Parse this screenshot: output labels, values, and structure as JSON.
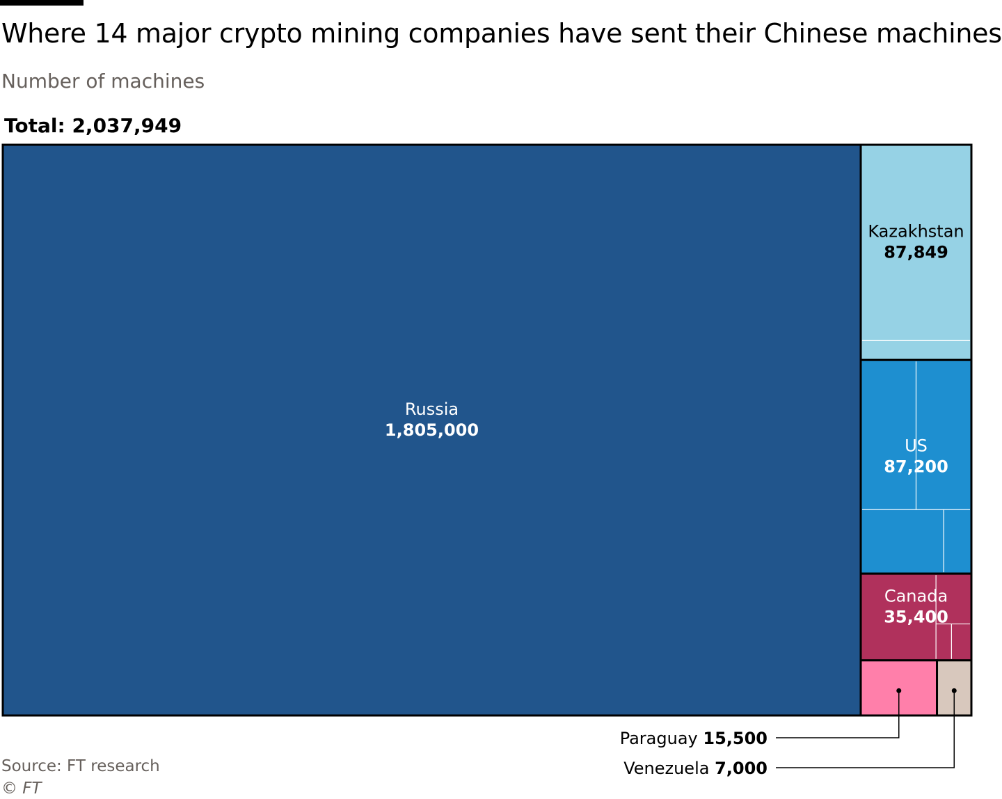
{
  "title": "Where 14 major crypto mining companies have sent their Chinese machines",
  "subtitle": "Number of machines",
  "total": {
    "label": "Total:",
    "value": "2,037,949"
  },
  "source": "Source: FT research",
  "copyright": "© FT",
  "chart_data": {
    "type": "treemap",
    "title": "Where 14 major crypto mining companies have sent their Chinese machines",
    "subtitle": "Number of machines",
    "total": 2037949,
    "categories": [
      "Russia",
      "Kazakhstan",
      "US",
      "Canada",
      "Paraguay",
      "Venezuela"
    ],
    "values": [
      1805000,
      87849,
      87200,
      35400,
      15500,
      7000
    ],
    "value_labels": [
      "1,805,000",
      "87,849",
      "87,200",
      "35,400",
      "15,500",
      "7,000"
    ],
    "colors": [
      "#21558c",
      "#96d2e5",
      "#1e8fd0",
      "#b0315c",
      "#ff7faa",
      "#d8c8bd"
    ],
    "label_colors": [
      "#ffffff",
      "#000000",
      "#ffffff",
      "#ffffff",
      "#000000",
      "#000000"
    ],
    "external_labels": [
      "Paraguay",
      "Venezuela"
    ]
  }
}
